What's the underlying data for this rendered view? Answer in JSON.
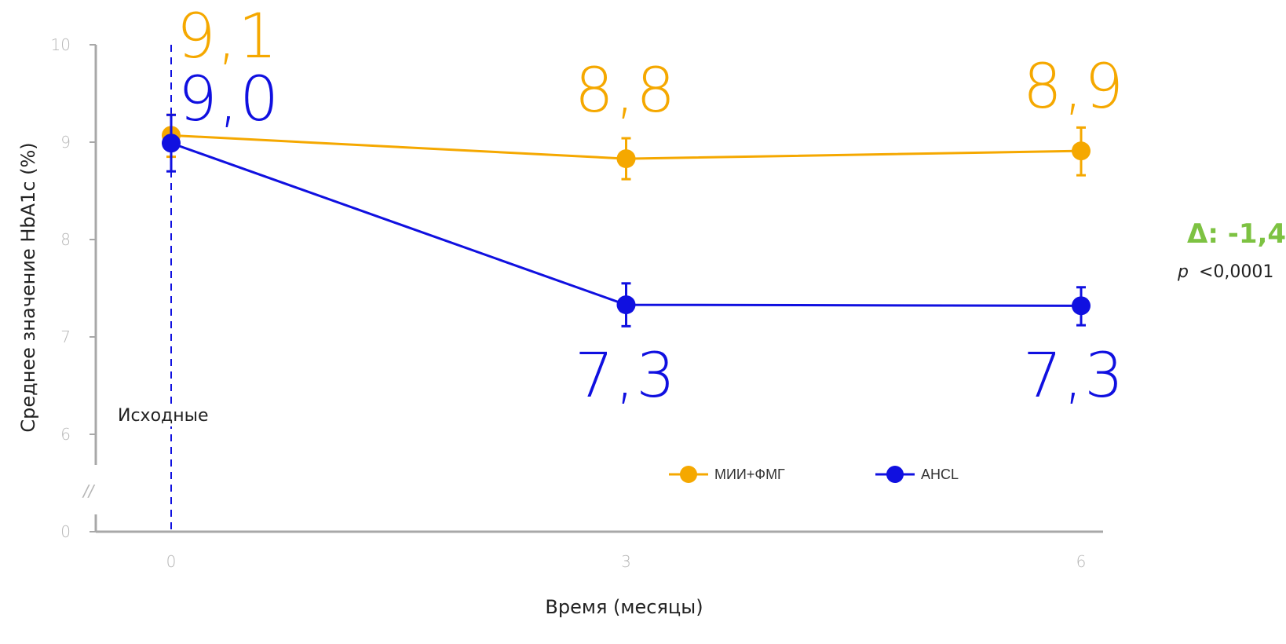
{
  "colors": {
    "series_orange": "#F5A800",
    "series_blue": "#1010E0",
    "axis": "#a8a8a8",
    "delta": "#7DC242"
  },
  "chart_data": {
    "type": "line",
    "x": [
      0,
      3,
      6
    ],
    "x_tick_labels": [
      "0",
      "3",
      "6"
    ],
    "y_tick_labels": [
      "0",
      "6",
      "7",
      "8",
      "9",
      "10"
    ],
    "y_break_label": "//",
    "xlabel": "Время (месяцы)",
    "ylabel": "Среднее значение HbA1c (%)",
    "ylim": [
      6,
      10
    ],
    "y_axis_break": true,
    "legend_position": "bottom-right",
    "baseline_marker": {
      "x": 0,
      "label": "Исходные",
      "style": "dashed"
    },
    "series": [
      {
        "name": "МИИ+ФМГ",
        "color": "#F5A800",
        "values": [
          9.07,
          8.83,
          8.91
        ],
        "error": [
          [
            8.85,
            9.28
          ],
          [
            8.62,
            9.04
          ],
          [
            8.66,
            9.15
          ]
        ],
        "data_labels": [
          "9,1",
          "8,8",
          "8,9"
        ]
      },
      {
        "name": "AHCL",
        "color": "#1010E0",
        "values": [
          8.99,
          7.33,
          7.32
        ],
        "error": [
          [
            8.7,
            9.28
          ],
          [
            7.11,
            7.55
          ],
          [
            7.12,
            7.51
          ]
        ],
        "data_labels": [
          "9,0",
          "7,3",
          "7,3"
        ]
      }
    ],
    "annotation": {
      "delta": "Δ: -1,4",
      "p_symbol": "p",
      "p_value": "<0,0001"
    }
  }
}
